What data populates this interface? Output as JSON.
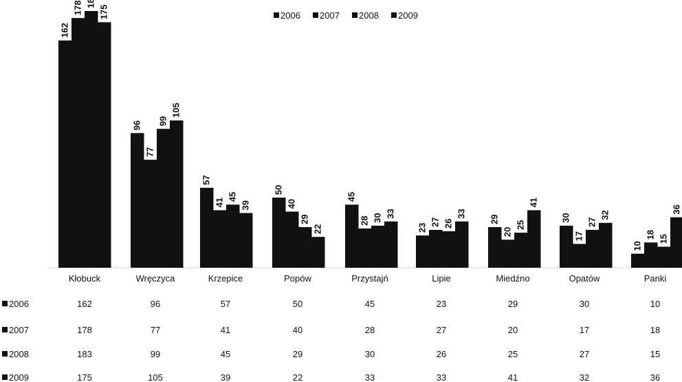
{
  "chart_data": {
    "type": "bar",
    "title": "",
    "xlabel": "",
    "ylabel": "",
    "ylim": [
      0,
      190
    ],
    "grid": false,
    "legend_position": "top",
    "categories": [
      "Kłobuck",
      "Wręczyca",
      "Krzepice",
      "Popów",
      "Przystajń",
      "Lipie",
      "Miedźno",
      "Opatów",
      "Panki"
    ],
    "series": [
      {
        "name": "2006",
        "values": [
          162,
          96,
          57,
          50,
          45,
          23,
          29,
          30,
          10
        ]
      },
      {
        "name": "2007",
        "values": [
          178,
          77,
          41,
          40,
          28,
          27,
          20,
          17,
          18
        ]
      },
      {
        "name": "2008",
        "values": [
          183,
          99,
          45,
          29,
          30,
          26,
          25,
          27,
          15
        ]
      },
      {
        "name": "2009",
        "values": [
          175,
          105,
          39,
          22,
          33,
          33,
          41,
          32,
          36
        ]
      }
    ],
    "bar_color": "#111111",
    "data_table": true
  }
}
